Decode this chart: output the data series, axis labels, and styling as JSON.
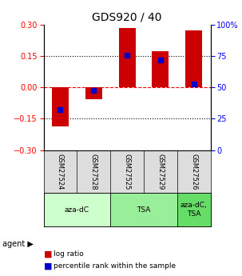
{
  "title": "GDS920 / 40",
  "samples": [
    "GSM27524",
    "GSM27528",
    "GSM27525",
    "GSM27529",
    "GSM27526"
  ],
  "log_ratios": [
    -0.185,
    -0.055,
    0.285,
    0.175,
    0.275
  ],
  "percentile_ranks": [
    0.32,
    0.475,
    0.76,
    0.72,
    0.53
  ],
  "agent_groups": [
    {
      "label": "aza-dC",
      "cols": [
        0,
        1
      ],
      "color": "#ccffcc"
    },
    {
      "label": "TSA",
      "cols": [
        2,
        3
      ],
      "color": "#99ee99"
    },
    {
      "label": "aza-dC,\nTSA",
      "cols": [
        4
      ],
      "color": "#66dd66"
    }
  ],
  "ylim": [
    -0.3,
    0.3
  ],
  "right_ylim": [
    0,
    100
  ],
  "right_yticks": [
    0,
    25,
    50,
    75,
    100
  ],
  "right_yticklabels": [
    "0",
    "25",
    "50",
    "75",
    "100%"
  ],
  "left_yticks": [
    -0.3,
    -0.15,
    0,
    0.15,
    0.3
  ],
  "hline_values": [
    -0.15,
    0,
    0.15
  ],
  "bar_color": "#cc0000",
  "marker_color": "#0000cc",
  "bar_width": 0.5,
  "grid_color": "#000000",
  "background_color": "#ffffff",
  "label_fontsize": 7,
  "tick_fontsize": 7,
  "title_fontsize": 10
}
